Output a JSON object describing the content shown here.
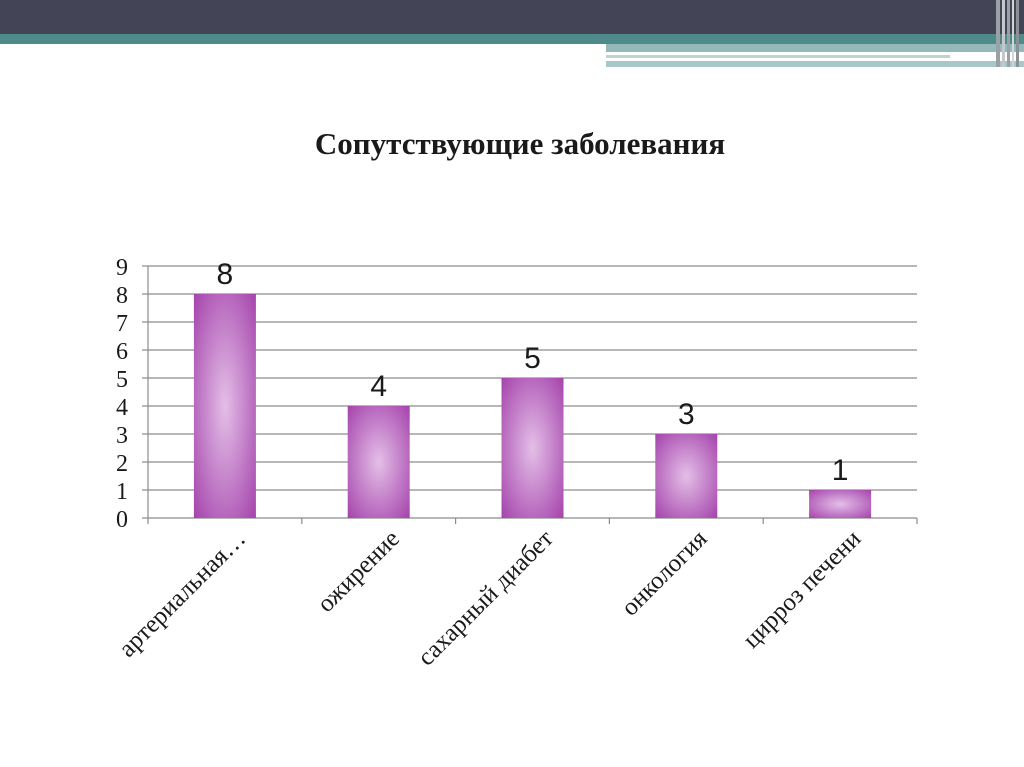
{
  "colors": {
    "header_dark": "#434557",
    "header_teal": "#4f8a8b",
    "bar_edge": "#a03ba8",
    "bar_center": "#e4bfe7",
    "gridline": "#8c8c8c"
  },
  "chart_data": {
    "type": "bar",
    "title": "Сопутствующие заболевания",
    "categories": [
      "артериальная…",
      "ожирение",
      "сахарный диабет",
      "онкология",
      "цирроз печени"
    ],
    "values": [
      8,
      4,
      5,
      3,
      1
    ],
    "data_labels": [
      "8",
      "4",
      "5",
      "3",
      "1"
    ],
    "y_ticks": [
      "0",
      "1",
      "2",
      "3",
      "4",
      "5",
      "6",
      "7",
      "8",
      "9"
    ],
    "ylim": [
      0,
      9
    ],
    "grid": true,
    "legend": "none"
  }
}
